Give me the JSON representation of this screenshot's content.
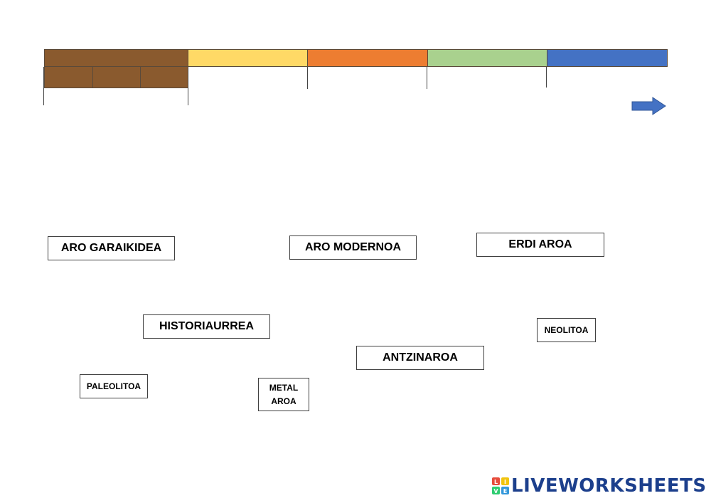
{
  "timeline": {
    "bar_colors": [
      "#8a5a2e",
      "#ffd966",
      "#ed7d31",
      "#a9d18e",
      "#4472c4"
    ],
    "sub_color": "#8a5a2e",
    "arrow_color": "#4472c4"
  },
  "labels": {
    "aro_garaikidea": "ARO GARAIKIDEA",
    "aro_modernoa": "ARO MODERNOA",
    "erdi_aroa": "ERDI AROA",
    "historiaurrea": "HISTORIAURREA",
    "neolitoa": "NEOLITOA",
    "antzinaroa": "ANTZINAROA",
    "paleolitoa": "PALEOLITOA",
    "metal_aroa_line1": "METAL",
    "metal_aroa_line2": "AROA"
  },
  "brand": {
    "logo_text": "LIVEWORKSHEETS",
    "badge_letters": [
      "L",
      "I",
      "V",
      "E"
    ]
  }
}
